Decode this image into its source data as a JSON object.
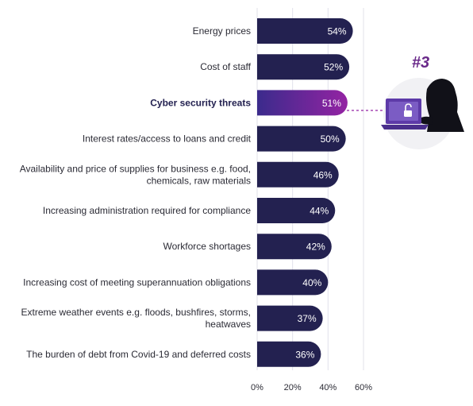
{
  "chart_data": {
    "type": "bar",
    "orientation": "horizontal",
    "categories": [
      [
        "Energy prices"
      ],
      [
        "Cost of staff"
      ],
      [
        "Cyber security threats"
      ],
      [
        "Interest rates/access to loans and credit"
      ],
      [
        "Availability and price of supplies for business e.g. food,",
        "chemicals, raw materials"
      ],
      [
        "Increasing administration required for compliance"
      ],
      [
        "Workforce shortages"
      ],
      [
        "Increasing cost of meeting superannuation obligations"
      ],
      [
        "Extreme weather events e.g. floods, bushfires, storms,",
        "heatwaves"
      ],
      [
        "The burden of debt from Covid-19 and deferred costs"
      ]
    ],
    "values": [
      54,
      52,
      51,
      50,
      46,
      44,
      42,
      40,
      37,
      36
    ],
    "value_labels": [
      "54%",
      "52%",
      "51%",
      "50%",
      "46%",
      "44%",
      "42%",
      "40%",
      "37%",
      "36%"
    ],
    "highlight_index": 2,
    "xlim": [
      0,
      60
    ],
    "x_ticks": [
      0,
      20,
      40,
      60
    ],
    "x_tick_labels": [
      "0%",
      "20%",
      "40%",
      "60%"
    ],
    "grid": "vertical-lines",
    "title": "",
    "xlabel": "",
    "ylabel": ""
  },
  "callout": {
    "rank_label": "#3",
    "icon": "hacker-laptop-icon"
  },
  "colors": {
    "bar": "#232150",
    "highlight_start": "#3b2b8c",
    "highlight_end": "#9423a3",
    "rank_label": "#6a2a8a",
    "text": "#2b2b35",
    "grid": "#e1e1ea",
    "callout_circle": "#f1f1f4",
    "laptop": "#5d3aa8"
  }
}
